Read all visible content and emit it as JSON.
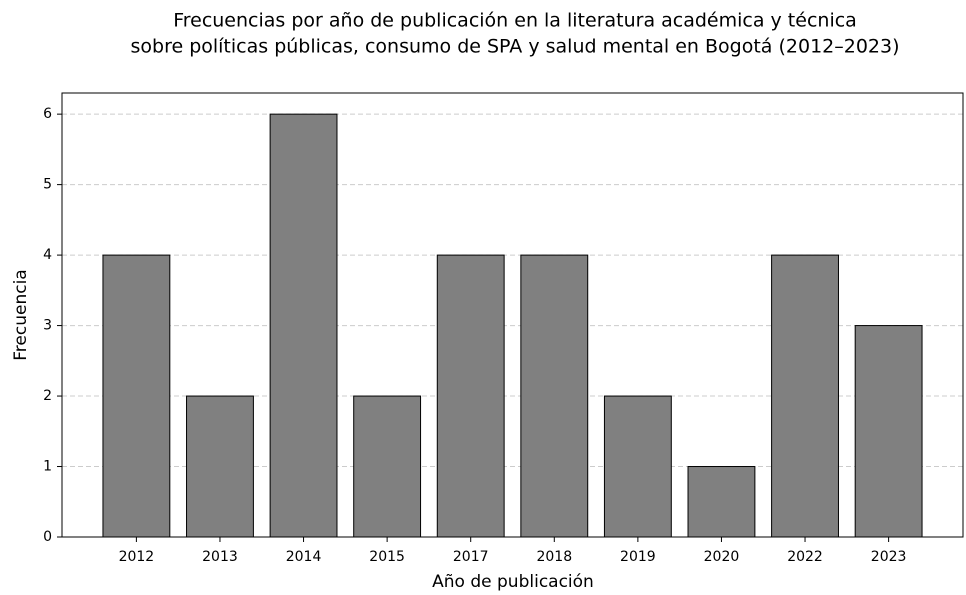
{
  "chart_data": {
    "type": "bar",
    "title": [
      "Frecuencias por año de publicación en la literatura académica y técnica",
      "sobre políticas públicas, consumo de SPA y salud mental en Bogotá (2012–2023)"
    ],
    "xlabel": "Año de publicación",
    "ylabel": "Frecuencia",
    "categories": [
      "2012",
      "2013",
      "2014",
      "2015",
      "2017",
      "2018",
      "2019",
      "2020",
      "2022",
      "2023"
    ],
    "values": [
      4,
      2,
      6,
      2,
      4,
      4,
      2,
      1,
      4,
      3
    ],
    "color": "#808080",
    "edgecolor": "#000000",
    "ylim": [
      0,
      6.3
    ],
    "yticks": [
      0,
      1,
      2,
      3,
      4,
      5,
      6
    ],
    "grid": true
  }
}
